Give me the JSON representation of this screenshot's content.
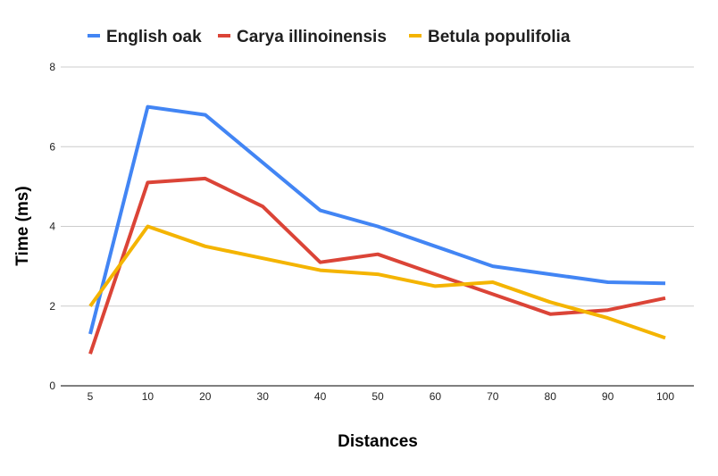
{
  "chart_data": {
    "type": "line",
    "title": "",
    "xlabel": "Distances",
    "ylabel": "Time (ms)",
    "categories": [
      "5",
      "10",
      "20",
      "30",
      "40",
      "50",
      "60",
      "70",
      "80",
      "90",
      "100"
    ],
    "ylim": [
      0,
      8
    ],
    "yticks": [
      "0",
      "2",
      "4",
      "6",
      "8"
    ],
    "grid": true,
    "legend_position": "top",
    "series": [
      {
        "name": "English oak",
        "color": "#4285F4",
        "values": [
          1.3,
          7.0,
          6.8,
          5.6,
          4.4,
          4.0,
          3.5,
          3.0,
          2.8,
          2.6,
          2.57
        ]
      },
      {
        "name": "Carya illinoinensis",
        "color": "#DB4437",
        "values": [
          0.8,
          5.1,
          5.2,
          4.5,
          3.1,
          3.3,
          2.8,
          2.3,
          1.8,
          1.9,
          2.2
        ]
      },
      {
        "name": "Betula populifolia",
        "color": "#F4B400",
        "values": [
          2.0,
          4.0,
          3.5,
          3.2,
          2.9,
          2.8,
          2.5,
          2.6,
          2.1,
          1.7,
          1.2
        ]
      }
    ]
  }
}
